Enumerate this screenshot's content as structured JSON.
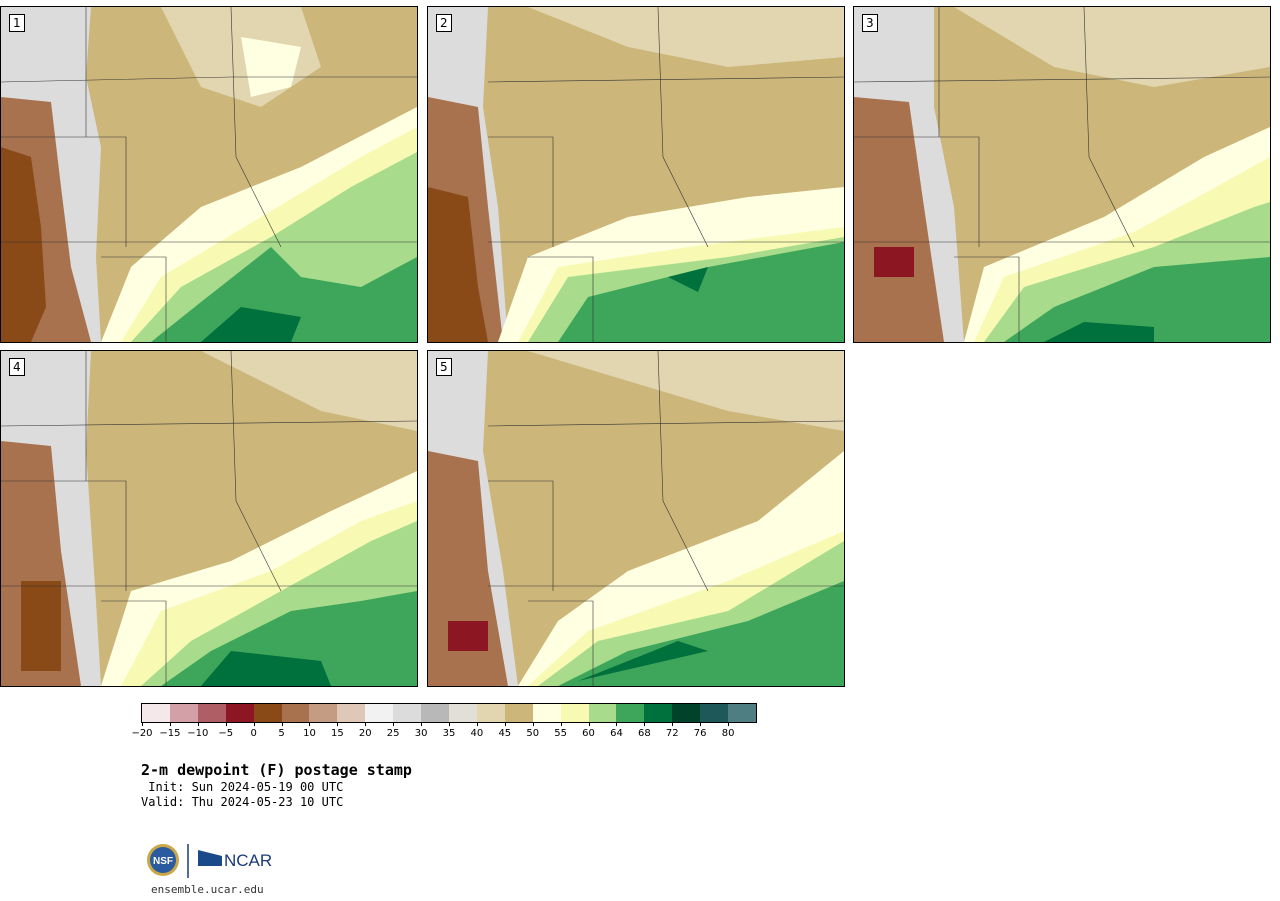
{
  "panels": [
    {
      "label": "1"
    },
    {
      "label": "2"
    },
    {
      "label": "3"
    },
    {
      "label": "4"
    },
    {
      "label": "5"
    }
  ],
  "colorbar": {
    "colors": [
      "#f4e8ea",
      "#d4a0a8",
      "#b05e66",
      "#8c1622",
      "#8a4a18",
      "#a8724e",
      "#c49c84",
      "#e0c8b8",
      "#f2f2f2",
      "#dcdcdc",
      "#b8b8b8",
      "#e2e0d6",
      "#e2d6b0",
      "#ccb67a",
      "#ffffe2",
      "#f8fab4",
      "#a8dc8c",
      "#3ea65a",
      "#00703c",
      "#00432a",
      "#1e5858",
      "#4f7e82"
    ],
    "tick_labels": [
      "−20",
      "−15",
      "−10",
      "−5",
      "0",
      "5",
      "10",
      "15",
      "20",
      "25",
      "30",
      "35",
      "40",
      "45",
      "50",
      "55",
      "60",
      "64",
      "68",
      "72",
      "76",
      "80"
    ]
  },
  "title": "2-m dewpoint (F) postage stamp",
  "init": " Init: Sun 2024-05-19 00 UTC",
  "valid": "Valid: Thu 2024-05-23 10 UTC",
  "logo": {
    "nsf": "NSF",
    "ncar": "NCAR"
  },
  "url": "ensemble.ucar.edu"
}
